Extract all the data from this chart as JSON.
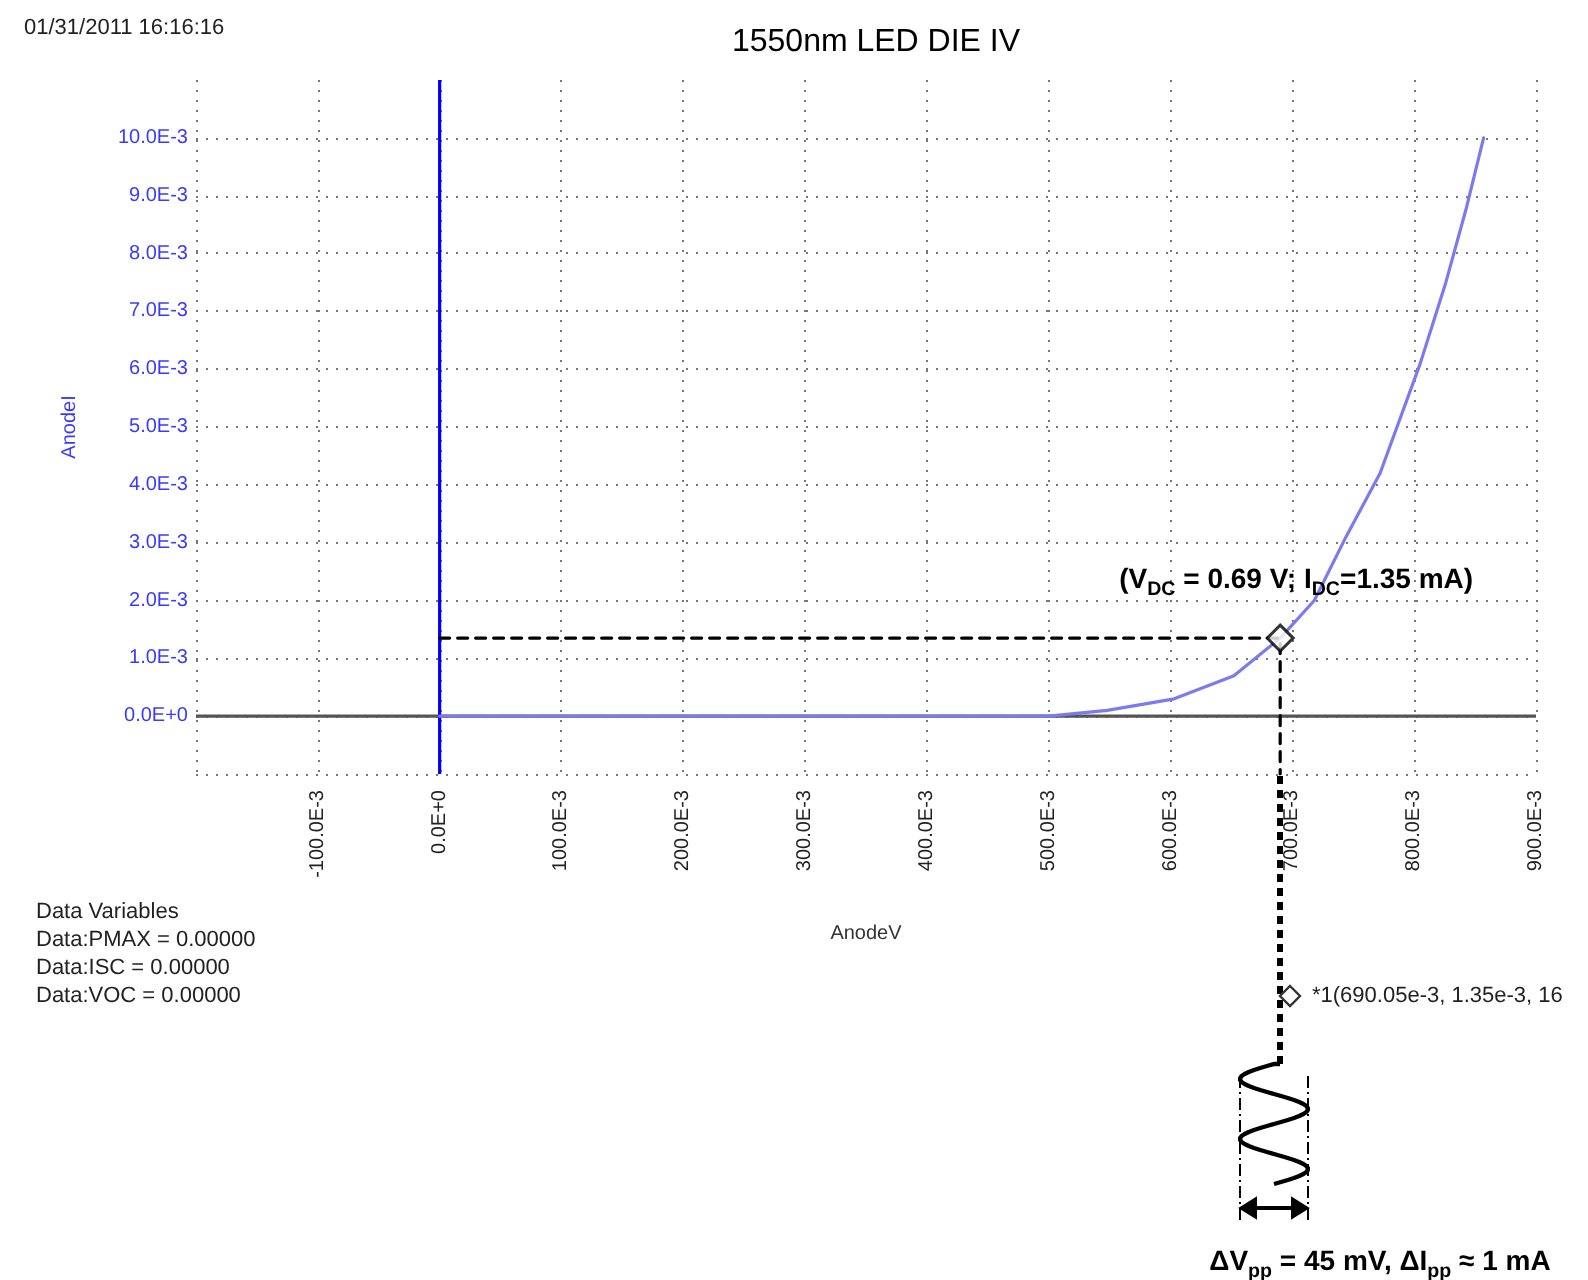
{
  "chart_data": {
    "type": "line",
    "title": "1550nm LED DIE IV",
    "xlabel": "AnodeV",
    "ylabel": "AnodeI",
    "xlim": [
      -0.2,
      0.9
    ],
    "ylim": [
      -0.001,
      0.011
    ],
    "xticks": [
      {
        "value": -0.2,
        "label": null
      },
      {
        "value": -0.1,
        "label": "-100.0E-3"
      },
      {
        "value": 0,
        "label": "0.0E+0"
      },
      {
        "value": 0.1,
        "label": "100.0E-3"
      },
      {
        "value": 0.2,
        "label": "200.0E-3"
      },
      {
        "value": 0.3,
        "label": "300.0E-3"
      },
      {
        "value": 0.4,
        "label": "400.0E-3"
      },
      {
        "value": 0.5,
        "label": "500.0E-3"
      },
      {
        "value": 0.6,
        "label": "600.0E-3"
      },
      {
        "value": 0.7,
        "label": "700.0E-3"
      },
      {
        "value": 0.8,
        "label": "800.0E-3"
      },
      {
        "value": 0.9,
        "label": "900.0E-3"
      }
    ],
    "yticks": [
      {
        "value": -0.001,
        "label": null
      },
      {
        "value": 0,
        "label": "0.0E+0"
      },
      {
        "value": 0.001,
        "label": "1.0E-3"
      },
      {
        "value": 0.002,
        "label": "2.0E-3"
      },
      {
        "value": 0.003,
        "label": "3.0E-3"
      },
      {
        "value": 0.004,
        "label": "4.0E-3"
      },
      {
        "value": 0.005,
        "label": "5.0E-3"
      },
      {
        "value": 0.006,
        "label": "6.0E-3"
      },
      {
        "value": 0.007,
        "label": "7.0E-3"
      },
      {
        "value": 0.008,
        "label": "8.0E-3"
      },
      {
        "value": 0.009,
        "label": "9.0E-3"
      },
      {
        "value": 0.01,
        "label": "10.0E-3"
      }
    ],
    "grid": true,
    "marker": "none",
    "ref_lines": [
      {
        "axis": "x",
        "value": 0,
        "color": "#0000ff"
      },
      {
        "axis": "y",
        "value": 0,
        "color": "#555555"
      }
    ],
    "series": [
      {
        "color": "#7b7bf0",
        "x": [
          0,
          0.1,
          0.2,
          0.3,
          0.4,
          0.5,
          0.548,
          0.603,
          0.652,
          0.69,
          0.718,
          0.744,
          0.772,
          0.805,
          0.826,
          0.843,
          0.857
        ],
        "values": [
          0,
          0,
          0,
          0,
          0,
          0,
          0.0001,
          0.0003,
          0.0007,
          0.00135,
          0.002,
          0.0031,
          0.0042,
          0.0061,
          0.0075,
          0.0088,
          0.01
        ]
      },
      {
        "color": "#000000",
        "line_style": "dashed",
        "x": [
          0,
          0.69,
          0.69
        ],
        "values": [
          0.00135,
          0.00135,
          -0.001
        ]
      },
      {
        "type": "scatter",
        "color": "#000000",
        "marker": "diamond",
        "x": [
          0.69
        ],
        "values": [
          0.00135
        ]
      }
    ],
    "annotations": [
      "01/31/2011 16:16:16",
      "Data Variables",
      "Data:PMAX = 0.00000",
      "Data:ISC = 0.00000",
      "Data:VOC = 0.00000",
      "*1(690.05e-3, 1.35e-3, 16",
      {
        "text": "(V$_{DC}$ = 0.69 V; I$_{DC}$=1.35 mA)",
        "x": 0.69,
        "y": 0.00135
      },
      "ΔV$_{pp}$ = 45 mV, ΔI$_{pp}$ ≈ 1 mA"
    ]
  }
}
